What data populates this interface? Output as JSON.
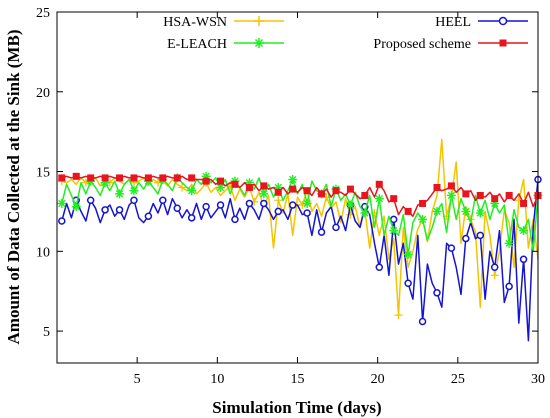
{
  "chart_data": {
    "type": "line",
    "xlabel": "Simulation Time (days)",
    "ylabel": "Amount of Data Collected at the Sink (MB)",
    "xlim": [
      0,
      30
    ],
    "ylim": [
      3,
      25
    ],
    "xticks": [
      5,
      10,
      15,
      20,
      25,
      30
    ],
    "yticks": [
      5,
      10,
      15,
      20,
      25
    ],
    "grid": false,
    "legend_position": "top",
    "series": [
      {
        "name": "HSA-WSN",
        "color": "#f5c400",
        "marker": "plus",
        "marker_every": 5,
        "x": [
          0.3,
          0.6,
          0.9,
          1.2,
          1.5,
          1.8,
          2.1,
          2.4,
          2.7,
          3.0,
          3.3,
          3.6,
          3.9,
          4.2,
          4.5,
          4.8,
          5.1,
          5.4,
          5.7,
          6.0,
          6.3,
          6.6,
          6.9,
          7.2,
          7.5,
          7.8,
          8.1,
          8.4,
          8.7,
          9.0,
          9.3,
          9.6,
          9.9,
          10.2,
          10.5,
          10.8,
          11.1,
          11.4,
          11.7,
          12.0,
          12.3,
          12.6,
          12.9,
          13.2,
          13.5,
          13.8,
          14.1,
          14.4,
          14.7,
          15.0,
          15.3,
          15.6,
          15.9,
          16.2,
          16.5,
          16.8,
          17.1,
          17.4,
          17.7,
          18.0,
          18.3,
          18.6,
          18.9,
          19.2,
          19.5,
          19.8,
          20.1,
          20.4,
          20.7,
          21.0,
          21.3,
          21.6,
          21.9,
          22.2,
          22.5,
          22.8,
          23.1,
          23.4,
          23.7,
          24.0,
          24.3,
          24.6,
          24.9,
          25.2,
          25.5,
          25.8,
          26.1,
          26.4,
          26.7,
          27.0,
          27.3,
          27.6,
          27.9,
          28.2,
          28.5,
          28.8,
          29.1,
          29.4,
          29.7,
          30.0
        ],
        "y": [
          14.4,
          14.3,
          14.5,
          14.2,
          14.6,
          14.3,
          14.4,
          14.6,
          14.1,
          14.5,
          14.3,
          14.6,
          14.4,
          14.2,
          14.5,
          14.3,
          14.4,
          14.6,
          14.2,
          14.5,
          14.3,
          14.4,
          14.1,
          14.5,
          14.2,
          14.0,
          13.8,
          14.2,
          13.6,
          13.9,
          14.3,
          13.7,
          14.0,
          13.5,
          13.8,
          14.1,
          13.2,
          13.9,
          13.4,
          14.0,
          13.1,
          13.7,
          12.8,
          13.5,
          10.2,
          13.2,
          12.4,
          13.6,
          11.0,
          13.4,
          12.9,
          13.8,
          12.5,
          13.0,
          12.2,
          13.4,
          12.7,
          13.1,
          11.8,
          13.3,
          12.3,
          12.8,
          11.5,
          12.6,
          10.2,
          12.4,
          11.0,
          12.2,
          9.5,
          10.8,
          6.0,
          11.5,
          9.0,
          10.0,
          11.4,
          12.0,
          10.6,
          12.5,
          13.5,
          17.0,
          12.2,
          13.4,
          15.6,
          10.5,
          12.8,
          12.0,
          11.2,
          6.5,
          12.5,
          11.0,
          8.5,
          10.0,
          12.6,
          11.8,
          9.0,
          13.2,
          14.5,
          10.2,
          12.0,
          9.5
        ]
      },
      {
        "name": "HEEL",
        "color": "#1414d2",
        "marker": "circle",
        "marker_every": 3,
        "x": [
          0.3,
          0.6,
          0.9,
          1.2,
          1.5,
          1.8,
          2.1,
          2.4,
          2.7,
          3.0,
          3.3,
          3.6,
          3.9,
          4.2,
          4.5,
          4.8,
          5.1,
          5.4,
          5.7,
          6.0,
          6.3,
          6.6,
          6.9,
          7.2,
          7.5,
          7.8,
          8.1,
          8.4,
          8.7,
          9.0,
          9.3,
          9.6,
          9.9,
          10.2,
          10.5,
          10.8,
          11.1,
          11.4,
          11.7,
          12.0,
          12.3,
          12.6,
          12.9,
          13.2,
          13.5,
          13.8,
          14.1,
          14.4,
          14.7,
          15.0,
          15.3,
          15.6,
          15.9,
          16.2,
          16.5,
          16.8,
          17.1,
          17.4,
          17.7,
          18.0,
          18.3,
          18.6,
          18.9,
          19.2,
          19.5,
          19.8,
          20.1,
          20.4,
          20.7,
          21.0,
          21.3,
          21.6,
          21.9,
          22.2,
          22.5,
          22.8,
          23.1,
          23.4,
          23.7,
          24.0,
          24.3,
          24.6,
          24.9,
          25.2,
          25.5,
          25.8,
          26.1,
          26.4,
          26.7,
          27.0,
          27.3,
          27.6,
          27.9,
          28.2,
          28.5,
          28.8,
          29.1,
          29.4,
          29.7,
          30.0
        ],
        "y": [
          11.9,
          13.0,
          12.1,
          13.2,
          12.5,
          11.9,
          13.2,
          12.7,
          11.8,
          12.6,
          12.9,
          12.2,
          12.6,
          12.0,
          12.9,
          13.2,
          12.1,
          11.8,
          12.2,
          13.0,
          12.4,
          13.2,
          12.3,
          13.3,
          12.7,
          12.1,
          12.6,
          12.1,
          13.0,
          12.0,
          12.8,
          12.1,
          12.5,
          12.9,
          12.1,
          13.3,
          12.0,
          12.7,
          12.0,
          13.0,
          12.6,
          12.0,
          13.0,
          12.6,
          12.0,
          12.5,
          12.6,
          12.0,
          12.9,
          12.9,
          12.3,
          12.4,
          11.0,
          12.6,
          11.2,
          12.4,
          12.8,
          11.5,
          12.2,
          11.3,
          12.9,
          11.9,
          11.5,
          12.8,
          12.3,
          10.5,
          9.0,
          11.0,
          8.5,
          12.0,
          9.2,
          10.5,
          8.0,
          7.0,
          11.0,
          5.6,
          9.2,
          8.0,
          7.4,
          6.5,
          10.5,
          10.2,
          9.0,
          7.3,
          10.8,
          11.8,
          10.8,
          11.0,
          7.0,
          10.0,
          9.0,
          11.3,
          6.8,
          7.8,
          12.0,
          5.5,
          9.5,
          4.4,
          11.5,
          14.5
        ]
      },
      {
        "name": "E-LEACH",
        "color": "#22ee22",
        "marker": "star",
        "marker_every": 3,
        "x": [
          0.3,
          0.6,
          0.9,
          1.2,
          1.5,
          1.8,
          2.1,
          2.4,
          2.7,
          3.0,
          3.3,
          3.6,
          3.9,
          4.2,
          4.5,
          4.8,
          5.1,
          5.4,
          5.7,
          6.0,
          6.3,
          6.6,
          6.9,
          7.2,
          7.5,
          7.8,
          8.1,
          8.4,
          8.7,
          9.0,
          9.3,
          9.6,
          9.9,
          10.2,
          10.5,
          10.8,
          11.1,
          11.4,
          11.7,
          12.0,
          12.3,
          12.6,
          12.9,
          13.2,
          13.5,
          13.8,
          14.1,
          14.4,
          14.7,
          15.0,
          15.3,
          15.6,
          15.9,
          16.2,
          16.5,
          16.8,
          17.1,
          17.4,
          17.7,
          18.0,
          18.3,
          18.6,
          18.9,
          19.2,
          19.5,
          19.8,
          20.1,
          20.4,
          20.7,
          21.0,
          21.3,
          21.6,
          21.9,
          22.2,
          22.5,
          22.8,
          23.1,
          23.4,
          23.7,
          24.0,
          24.3,
          24.6,
          24.9,
          25.2,
          25.5,
          25.8,
          26.1,
          26.4,
          26.7,
          27.0,
          27.3,
          27.6,
          27.9,
          28.2,
          28.5,
          28.8,
          29.1,
          29.4,
          29.7,
          30.0
        ],
        "y": [
          13.0,
          14.2,
          13.5,
          12.8,
          14.3,
          13.6,
          14.4,
          14.0,
          13.5,
          14.3,
          13.8,
          14.4,
          13.6,
          14.2,
          14.5,
          13.8,
          14.3,
          13.9,
          14.4,
          14.0,
          13.6,
          14.5,
          14.2,
          13.8,
          14.6,
          14.3,
          14.0,
          13.8,
          14.5,
          14.2,
          14.7,
          14.3,
          14.6,
          14.0,
          14.5,
          13.6,
          14.4,
          14.0,
          13.5,
          14.3,
          13.9,
          14.6,
          13.6,
          14.2,
          13.4,
          14.0,
          13.2,
          13.8,
          14.5,
          13.6,
          14.2,
          13.0,
          14.4,
          13.8,
          13.6,
          14.2,
          12.8,
          13.9,
          13.2,
          13.6,
          12.9,
          13.7,
          12.8,
          12.4,
          13.5,
          11.5,
          13.3,
          11.0,
          12.2,
          11.3,
          11.0,
          12.3,
          9.8,
          11.8,
          12.4,
          12.0,
          10.7,
          11.5,
          12.5,
          13.0,
          11.2,
          13.5,
          12.0,
          13.3,
          12.5,
          11.8,
          13.5,
          12.4,
          13.2,
          12.0,
          13.0,
          12.4,
          12.9,
          10.5,
          12.6,
          11.5,
          11.3,
          12.0,
          10.0,
          13.5
        ]
      },
      {
        "name": "Proposed scheme",
        "color": "#e8141e",
        "marker": "square",
        "marker_every": 3,
        "x": [
          0.3,
          0.6,
          0.9,
          1.2,
          1.5,
          1.8,
          2.1,
          2.4,
          2.7,
          3.0,
          3.3,
          3.6,
          3.9,
          4.2,
          4.5,
          4.8,
          5.1,
          5.4,
          5.7,
          6.0,
          6.3,
          6.6,
          6.9,
          7.2,
          7.5,
          7.8,
          8.1,
          8.4,
          8.7,
          9.0,
          9.3,
          9.6,
          9.9,
          10.2,
          10.5,
          10.8,
          11.1,
          11.4,
          11.7,
          12.0,
          12.3,
          12.6,
          12.9,
          13.2,
          13.5,
          13.8,
          14.1,
          14.4,
          14.7,
          15.0,
          15.3,
          15.6,
          15.9,
          16.2,
          16.5,
          16.8,
          17.1,
          17.4,
          17.7,
          18.0,
          18.3,
          18.6,
          18.9,
          19.2,
          19.5,
          19.8,
          20.1,
          20.4,
          20.7,
          21.0,
          21.3,
          21.6,
          21.9,
          22.2,
          22.5,
          22.8,
          23.1,
          23.4,
          23.7,
          24.0,
          24.3,
          24.6,
          24.9,
          25.2,
          25.5,
          25.8,
          26.1,
          26.4,
          26.7,
          27.0,
          27.3,
          27.6,
          27.9,
          28.2,
          28.5,
          28.8,
          29.1,
          29.4,
          29.7,
          30.0
        ],
        "y": [
          14.6,
          14.7,
          14.6,
          14.7,
          14.6,
          14.7,
          14.6,
          14.6,
          14.7,
          14.6,
          14.7,
          14.6,
          14.6,
          14.7,
          14.6,
          14.6,
          14.7,
          14.6,
          14.6,
          14.7,
          14.6,
          14.6,
          14.7,
          14.6,
          14.6,
          14.7,
          14.5,
          14.6,
          14.5,
          14.5,
          14.4,
          14.5,
          14.2,
          14.4,
          14.1,
          14.3,
          14.2,
          14.0,
          14.3,
          14.0,
          14.2,
          13.8,
          14.1,
          13.9,
          14.0,
          13.7,
          14.0,
          13.6,
          13.9,
          13.7,
          14.0,
          13.8,
          13.5,
          14.0,
          13.6,
          13.9,
          13.4,
          13.8,
          13.7,
          13.5,
          13.9,
          13.6,
          13.3,
          13.5,
          14.0,
          13.4,
          14.2,
          13.8,
          13.1,
          13.3,
          12.3,
          12.8,
          12.5,
          12.2,
          12.9,
          13.0,
          13.2,
          13.6,
          14.0,
          13.8,
          13.9,
          14.1,
          13.7,
          14.0,
          13.6,
          13.8,
          13.2,
          13.5,
          13.4,
          13.7,
          13.3,
          13.6,
          13.1,
          13.5,
          13.2,
          13.6,
          13.0,
          13.7,
          12.8,
          13.5
        ]
      }
    ]
  }
}
